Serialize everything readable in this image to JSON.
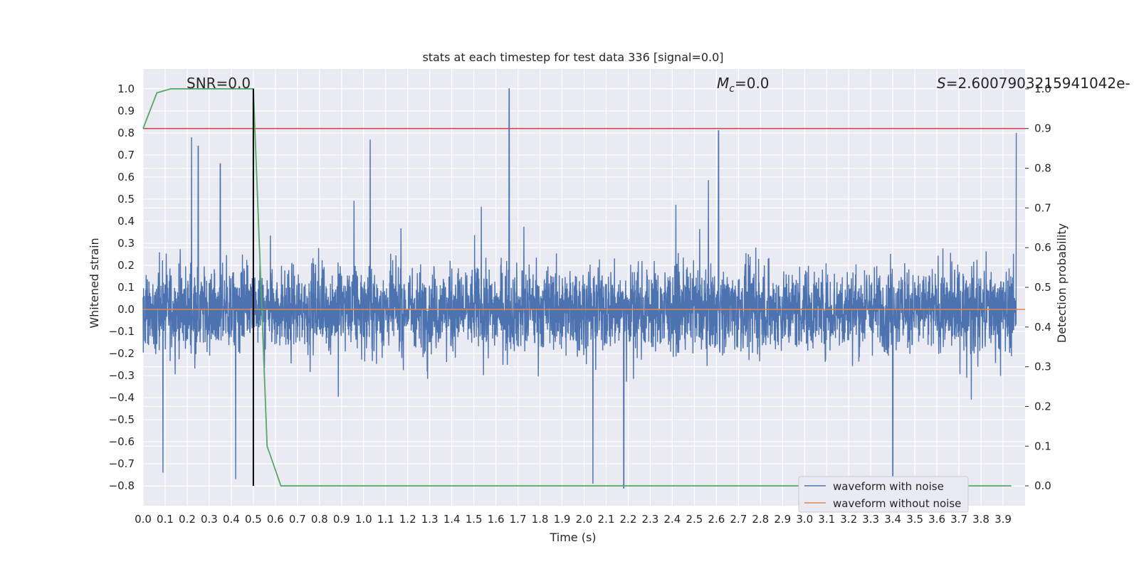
{
  "chart_data": {
    "type": "line",
    "title": "stats at each timestep for test data 336 [signal=0.0]",
    "xlabel": "Time (s)",
    "ylabel": "Whitened strain",
    "y2label": "Detection probability",
    "xlim": [
      0.0,
      4.0
    ],
    "ylim": [
      -0.89,
      1.09
    ],
    "y2lim": [
      -0.05,
      1.05
    ],
    "x_ticks": [
      "0.0",
      "0.1",
      "0.2",
      "0.3",
      "0.4",
      "0.5",
      "0.6",
      "0.7",
      "0.8",
      "0.9",
      "1.0",
      "1.1",
      "1.2",
      "1.3",
      "1.4",
      "1.5",
      "1.6",
      "1.7",
      "1.8",
      "1.9",
      "2.0",
      "2.1",
      "2.2",
      "2.3",
      "2.4",
      "2.5",
      "2.6",
      "2.7",
      "2.8",
      "2.9",
      "3.0",
      "3.1",
      "3.2",
      "3.3",
      "3.4",
      "3.5",
      "3.6",
      "3.7",
      "3.8",
      "3.9"
    ],
    "y_ticks": [
      "1.0",
      "0.9",
      "0.8",
      "0.7",
      "0.6",
      "0.5",
      "0.4",
      "0.3",
      "0.2",
      "0.1",
      "0.0",
      "−0.1",
      "−0.2",
      "−0.3",
      "−0.4",
      "−0.5",
      "−0.6",
      "−0.7",
      "−0.8"
    ],
    "y2_ticks": [
      "1.0",
      "0.9",
      "0.8",
      "0.7",
      "0.6",
      "0.5",
      "0.4",
      "0.3",
      "0.2",
      "0.1",
      "0.0"
    ],
    "grid": true,
    "legend_position": "bottom-right",
    "annotations": {
      "snr": "SNR=0.0",
      "mc_symbol": "M",
      "mc_sub": "c",
      "mc_value": "=0.0",
      "s_symbol": "S",
      "s_value": "=2.6007903215941042e-"
    },
    "series": [
      {
        "name": "waveform with noise",
        "axis": "left",
        "color": "#4c72b0",
        "render": "dense-noise",
        "description_of_values": "whitened strain samples fluctuating between about -0.8 and 1.0",
        "peak_samples": [
          {
            "x": 0.22,
            "y": 0.78
          },
          {
            "x": 0.25,
            "y": 0.74
          },
          {
            "x": 0.35,
            "y": 0.66
          },
          {
            "x": 0.42,
            "y": -0.77
          },
          {
            "x": 0.09,
            "y": -0.74
          },
          {
            "x": 1.03,
            "y": 0.77
          },
          {
            "x": 1.66,
            "y": 1.0
          },
          {
            "x": 2.04,
            "y": -0.79
          },
          {
            "x": 2.18,
            "y": -0.81
          },
          {
            "x": 2.61,
            "y": 0.81
          },
          {
            "x": 3.4,
            "y": -0.77
          },
          {
            "x": 3.96,
            "y": 0.8
          }
        ]
      },
      {
        "name": "waveform without noise",
        "axis": "left",
        "color": "#dd8452",
        "x": [
          0.0,
          4.0
        ],
        "y": [
          0.0,
          0.0
        ]
      },
      {
        "name": "",
        "axis": "right",
        "color": "#55a868",
        "x": [
          0.0,
          0.0625,
          0.125,
          0.1875,
          0.25,
          0.3125,
          0.375,
          0.4375,
          0.5,
          0.5625,
          0.625,
          0.6875,
          1.0,
          1.5,
          2.0,
          2.5,
          3.0,
          3.5,
          3.9375
        ],
        "y": [
          0.9,
          0.99,
          1.0,
          1.0,
          1.0,
          1.0,
          1.0,
          1.0,
          1.0,
          0.1,
          0.0,
          0.0,
          0.0,
          0.0,
          0.0,
          0.0,
          0.0,
          0.0,
          0.0
        ]
      },
      {
        "name": "",
        "axis": "right",
        "color": "#c44e52",
        "x": [
          0.0,
          4.0
        ],
        "y": [
          0.9,
          0.9
        ]
      }
    ],
    "vertical_line": {
      "x": 0.5,
      "y_from": -0.8,
      "y_to": 1.0,
      "color": "#000000"
    }
  }
}
